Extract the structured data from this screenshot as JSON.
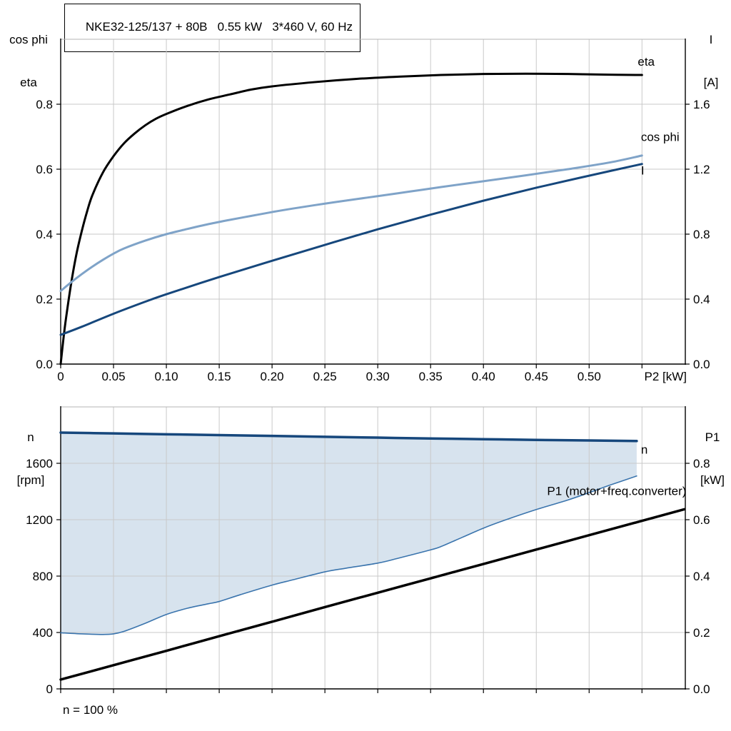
{
  "header": {
    "title": "NKE32-125/137 + 80B   0.55 kW   3*460 V, 60 Hz"
  },
  "axes_labels": {
    "top_left": [
      "cos phi",
      "eta"
    ],
    "top_right": [
      "I",
      "[A]"
    ],
    "bottom_left": [
      "n",
      "[rpm]"
    ],
    "bottom_right": [
      "P1",
      "[kW]"
    ]
  },
  "footer": {
    "note": "n = 100 %"
  },
  "colors": {
    "eta": "#000000",
    "cos_phi": "#7fa3c8",
    "current": "#16477c",
    "speed": "#16477c",
    "speed_min_line": "#3a74ad",
    "speed_range_fill": "#d0deeb",
    "p1": "#000000",
    "grid": "#c9c9c9",
    "axis": "#000000"
  },
  "chart_data": [
    {
      "id": "upper",
      "type": "line",
      "title": "NKE32-125/137 + 80B   0.55 kW   3*460 V, 60 Hz",
      "xlabel": "P2 [kW]",
      "ylabel_left": "cos phi / eta",
      "ylabel_right": "I [A]",
      "xlim": [
        0,
        0.591
      ],
      "ylim_left": [
        0,
        1.0
      ],
      "ylim_right": [
        0,
        2.0
      ],
      "grid": true,
      "x_grid": [
        0.05,
        0.1,
        0.15,
        0.2,
        0.25,
        0.3,
        0.35,
        0.4,
        0.45,
        0.5,
        0.55
      ],
      "y_grid_left": [
        0.2,
        0.4,
        0.6,
        0.8
      ],
      "x_tick_marks": [
        0,
        0.05,
        0.1,
        0.15,
        0.2,
        0.25,
        0.3,
        0.35,
        0.4,
        0.45,
        0.5,
        0.55
      ],
      "x_ticks": [
        {
          "v": 0,
          "label": "0"
        },
        {
          "v": 0.05,
          "label": "0.05"
        },
        {
          "v": 0.1,
          "label": "0.10"
        },
        {
          "v": 0.15,
          "label": "0.15"
        },
        {
          "v": 0.2,
          "label": "0.20"
        },
        {
          "v": 0.25,
          "label": "0.25"
        },
        {
          "v": 0.3,
          "label": "0.30"
        },
        {
          "v": 0.35,
          "label": "0.35"
        },
        {
          "v": 0.4,
          "label": "0.40"
        },
        {
          "v": 0.45,
          "label": "0.45"
        },
        {
          "v": 0.5,
          "label": "0.50"
        }
      ],
      "y_ticks_left": [
        {
          "v": 0,
          "label": "0.0"
        },
        {
          "v": 0.2,
          "label": "0.2"
        },
        {
          "v": 0.4,
          "label": "0.4"
        },
        {
          "v": 0.6,
          "label": "0.6"
        },
        {
          "v": 0.8,
          "label": "0.8"
        }
      ],
      "y_ticks_right": [
        {
          "v": 0,
          "label": "0.0"
        },
        {
          "v": 0.4,
          "label": "0.4"
        },
        {
          "v": 0.8,
          "label": "0.8"
        },
        {
          "v": 1.2,
          "label": "1.2"
        },
        {
          "v": 1.6,
          "label": "1.6"
        }
      ],
      "series": [
        {
          "id": "eta",
          "name": "eta",
          "axis": "left",
          "color": "#000000",
          "width": 3,
          "points": [
            [
              0,
              0
            ],
            [
              0.0025,
              0.075
            ],
            [
              0.005,
              0.14
            ],
            [
              0.01,
              0.25
            ],
            [
              0.015,
              0.34
            ],
            [
              0.02,
              0.41
            ],
            [
              0.025,
              0.47
            ],
            [
              0.03,
              0.52
            ],
            [
              0.04,
              0.59
            ],
            [
              0.05,
              0.64
            ],
            [
              0.06,
              0.68
            ],
            [
              0.07,
              0.71
            ],
            [
              0.08,
              0.735
            ],
            [
              0.09,
              0.755
            ],
            [
              0.1,
              0.77
            ],
            [
              0.12,
              0.795
            ],
            [
              0.14,
              0.815
            ],
            [
              0.16,
              0.83
            ],
            [
              0.18,
              0.845
            ],
            [
              0.2,
              0.855
            ],
            [
              0.24,
              0.868
            ],
            [
              0.28,
              0.878
            ],
            [
              0.32,
              0.885
            ],
            [
              0.36,
              0.89
            ],
            [
              0.4,
              0.893
            ],
            [
              0.44,
              0.894
            ],
            [
              0.48,
              0.893
            ],
            [
              0.52,
              0.891
            ],
            [
              0.55,
              0.89
            ]
          ]
        },
        {
          "id": "cos-phi",
          "name": "cos phi",
          "axis": "left",
          "color": "#7fa3c8",
          "width": 3,
          "points": [
            [
              0,
              0.225
            ],
            [
              0.01,
              0.252
            ],
            [
              0.02,
              0.277
            ],
            [
              0.03,
              0.3
            ],
            [
              0.04,
              0.321
            ],
            [
              0.05,
              0.34
            ],
            [
              0.06,
              0.356
            ],
            [
              0.08,
              0.38
            ],
            [
              0.1,
              0.4
            ],
            [
              0.12,
              0.416
            ],
            [
              0.14,
              0.431
            ],
            [
              0.16,
              0.444
            ],
            [
              0.18,
              0.456
            ],
            [
              0.2,
              0.468
            ],
            [
              0.22,
              0.479
            ],
            [
              0.25,
              0.494
            ],
            [
              0.28,
              0.508
            ],
            [
              0.3,
              0.517
            ],
            [
              0.33,
              0.531
            ],
            [
              0.36,
              0.545
            ],
            [
              0.4,
              0.563
            ],
            [
              0.44,
              0.581
            ],
            [
              0.48,
              0.6
            ],
            [
              0.52,
              0.621
            ],
            [
              0.55,
              0.642
            ]
          ]
        },
        {
          "id": "current",
          "name": "I",
          "axis": "left",
          "color": "#16477c",
          "width": 3,
          "points": [
            [
              0,
              0.09
            ],
            [
              0.02,
              0.115
            ],
            [
              0.05,
              0.155
            ],
            [
              0.08,
              0.192
            ],
            [
              0.1,
              0.215
            ],
            [
              0.15,
              0.268
            ],
            [
              0.2,
              0.318
            ],
            [
              0.25,
              0.367
            ],
            [
              0.3,
              0.415
            ],
            [
              0.35,
              0.46
            ],
            [
              0.4,
              0.503
            ],
            [
              0.45,
              0.543
            ],
            [
              0.5,
              0.58
            ],
            [
              0.55,
              0.616
            ]
          ]
        }
      ],
      "annotations": [
        {
          "id": "eta-label",
          "text": "eta",
          "x": 0.546,
          "y": 0.932,
          "axis": "left",
          "anchor": "start",
          "color": "#000000"
        },
        {
          "id": "cos-phi-label",
          "text": "cos phi",
          "x": 0.549,
          "y": 0.7,
          "axis": "left",
          "anchor": "start",
          "color": "#7fa3c8"
        },
        {
          "id": "current-label",
          "text": "I",
          "x": 0.549,
          "y": 0.597,
          "axis": "left",
          "anchor": "start",
          "color": "#16477c"
        }
      ]
    },
    {
      "id": "lower",
      "type": "line",
      "title": "",
      "xlabel": "",
      "ylabel_left": "n [rpm]",
      "ylabel_right": "P1 [kW]",
      "xlim": [
        0,
        0.591
      ],
      "ylim_left": [
        0,
        2000
      ],
      "ylim_right": [
        0,
        1.0
      ],
      "grid": true,
      "x_grid": [
        0.05,
        0.1,
        0.15,
        0.2,
        0.25,
        0.3,
        0.35,
        0.4,
        0.45,
        0.5,
        0.55
      ],
      "y_grid_left": [
        400,
        800,
        1200,
        1600
      ],
      "x_tick_marks": [
        0,
        0.05,
        0.1,
        0.15,
        0.2,
        0.25,
        0.3,
        0.35,
        0.4,
        0.45,
        0.5,
        0.55
      ],
      "x_ticks": [],
      "y_ticks_left": [
        {
          "v": 0,
          "label": "0"
        },
        {
          "v": 400,
          "label": "400"
        },
        {
          "v": 800,
          "label": "800"
        },
        {
          "v": 1200,
          "label": "1200"
        },
        {
          "v": 1600,
          "label": "1600"
        }
      ],
      "y_ticks_right": [
        {
          "v": 0,
          "label": "0.0"
        },
        {
          "v": 0.2,
          "label": "0.2"
        },
        {
          "v": 0.4,
          "label": "0.4"
        },
        {
          "v": 0.6,
          "label": "0.6"
        },
        {
          "v": 0.8,
          "label": "0.8"
        }
      ],
      "fill_between": {
        "upper": "n",
        "lower": "n-min",
        "color": "#d0deeb",
        "opacity": 0.85
      },
      "series": [
        {
          "id": "n-min",
          "name": "n min",
          "axis": "left",
          "color": "#3a74ad",
          "width": 1.6,
          "points": [
            [
              0,
              398
            ],
            [
              0.02,
              390
            ],
            [
              0.04,
              386
            ],
            [
              0.05,
              390
            ],
            [
              0.06,
              408
            ],
            [
              0.08,
              465
            ],
            [
              0.1,
              528
            ],
            [
              0.12,
              572
            ],
            [
              0.14,
              604
            ],
            [
              0.15,
              620
            ],
            [
              0.17,
              668
            ],
            [
              0.2,
              736
            ],
            [
              0.22,
              774
            ],
            [
              0.25,
              830
            ],
            [
              0.27,
              856
            ],
            [
              0.3,
              892
            ],
            [
              0.32,
              928
            ],
            [
              0.35,
              986
            ],
            [
              0.36,
              1010
            ],
            [
              0.38,
              1075
            ],
            [
              0.4,
              1140
            ],
            [
              0.42,
              1196
            ],
            [
              0.45,
              1272
            ],
            [
              0.48,
              1340
            ],
            [
              0.5,
              1392
            ],
            [
              0.52,
              1446
            ],
            [
              0.545,
              1510
            ]
          ]
        },
        {
          "id": "n",
          "name": "n",
          "axis": "left",
          "color": "#16477c",
          "width": 3.5,
          "points": [
            [
              0,
              1818
            ],
            [
              0.05,
              1812
            ],
            [
              0.1,
              1806
            ],
            [
              0.15,
              1800
            ],
            [
              0.2,
              1794
            ],
            [
              0.25,
              1788
            ],
            [
              0.3,
              1782
            ],
            [
              0.35,
              1776
            ],
            [
              0.4,
              1771
            ],
            [
              0.45,
              1766
            ],
            [
              0.5,
              1762
            ],
            [
              0.545,
              1758
            ]
          ]
        },
        {
          "id": "p1",
          "name": "P1 (motor+freq.converter)",
          "axis": "right",
          "color": "#000000",
          "width": 3.5,
          "points": [
            [
              0,
              0.033
            ],
            [
              0.05,
              0.084
            ],
            [
              0.1,
              0.135
            ],
            [
              0.15,
              0.187
            ],
            [
              0.2,
              0.238
            ],
            [
              0.25,
              0.29
            ],
            [
              0.3,
              0.341
            ],
            [
              0.35,
              0.392
            ],
            [
              0.4,
              0.443
            ],
            [
              0.45,
              0.494
            ],
            [
              0.5,
              0.545
            ],
            [
              0.55,
              0.596
            ],
            [
              0.59,
              0.637
            ]
          ]
        }
      ],
      "annotations": [
        {
          "id": "n-label",
          "text": "n",
          "x": 0.549,
          "y": 1700,
          "axis": "left",
          "anchor": "start",
          "color": "#3a74ad"
        },
        {
          "id": "p1-label",
          "text": "P1 (motor+freq.converter)",
          "x": 0.592,
          "y": 1405,
          "axis": "left",
          "anchor": "end",
          "color": "#000000"
        }
      ]
    }
  ]
}
